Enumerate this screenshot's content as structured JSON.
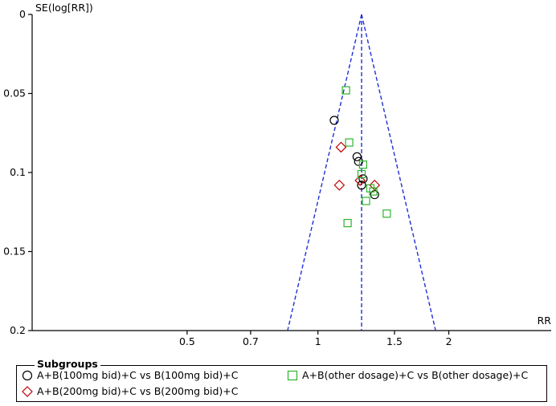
{
  "chart_data": {
    "type": "scatter",
    "title": "",
    "xlabel": "RR",
    "ylabel": "SE(log[RR])",
    "x_scale": "log",
    "xlim": [
      0.22,
      3.44
    ],
    "ylim": [
      0,
      0.2
    ],
    "y_inverted": true,
    "x_ticks": [
      0.5,
      0.7,
      1,
      1.5,
      2
    ],
    "x_tick_labels": [
      "0.5",
      "0.7",
      "1",
      "1.5",
      "2"
    ],
    "y_ticks": [
      0,
      0.05,
      0.1,
      0.15,
      0.2
    ],
    "y_tick_labels": [
      "0",
      "0.05",
      "0.1",
      "0.15",
      "0.2"
    ],
    "pooled_rr": 1.26,
    "funnel_limits": "95% confidence (pooled RR ± 1.96·SE)",
    "legend": {
      "title": "Subgroups",
      "placement": "bottom"
    },
    "series": [
      {
        "name": "A+B(100mg bid)+C vs B(100mg bid)+C",
        "marker": "circle",
        "color": "#000000",
        "points": [
          {
            "x": 1.09,
            "y": 0.067
          },
          {
            "x": 1.23,
            "y": 0.09
          },
          {
            "x": 1.24,
            "y": 0.093
          },
          {
            "x": 1.27,
            "y": 0.104
          },
          {
            "x": 1.26,
            "y": 0.108
          },
          {
            "x": 1.35,
            "y": 0.114
          }
        ]
      },
      {
        "name": "A+B(200mg bid)+C vs B(200mg bid)+C",
        "marker": "diamond",
        "color": "#c00000",
        "points": [
          {
            "x": 1.13,
            "y": 0.084
          },
          {
            "x": 1.12,
            "y": 0.108
          },
          {
            "x": 1.25,
            "y": 0.105
          },
          {
            "x": 1.35,
            "y": 0.108
          }
        ]
      },
      {
        "name": "A+B(other dosage)+C vs B(other dosage)+C",
        "marker": "square",
        "color": "#2db52d",
        "points": [
          {
            "x": 1.16,
            "y": 0.048
          },
          {
            "x": 1.18,
            "y": 0.081
          },
          {
            "x": 1.27,
            "y": 0.095
          },
          {
            "x": 1.26,
            "y": 0.101
          },
          {
            "x": 1.32,
            "y": 0.11
          },
          {
            "x": 1.34,
            "y": 0.112
          },
          {
            "x": 1.29,
            "y": 0.118
          },
          {
            "x": 1.44,
            "y": 0.126
          },
          {
            "x": 1.17,
            "y": 0.132
          }
        ]
      }
    ]
  }
}
